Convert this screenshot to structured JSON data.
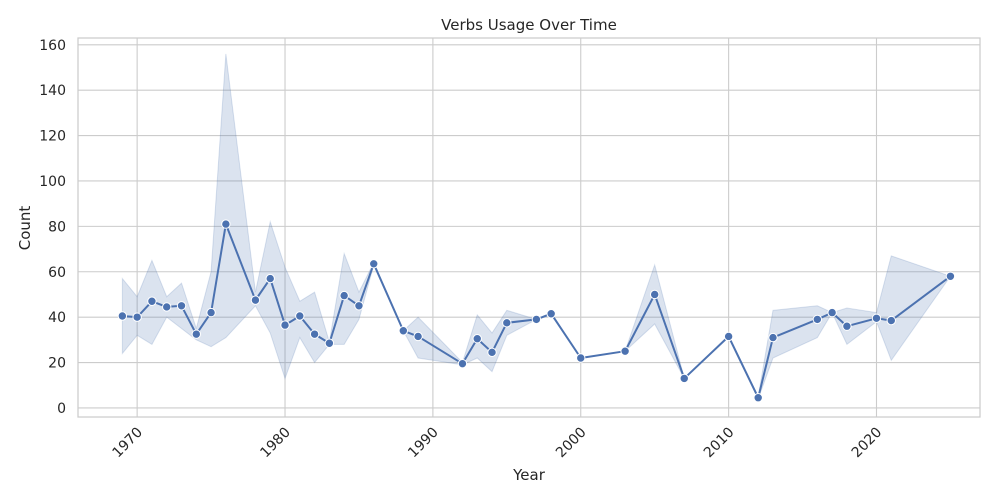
{
  "chart_data": {
    "type": "line",
    "title": "Verbs Usage Over Time",
    "xlabel": "Year",
    "ylabel": "Count",
    "xlim": [
      1966,
      2027
    ],
    "ylim": [
      -4,
      163
    ],
    "x_ticks": [
      1970,
      1980,
      1990,
      2000,
      2010,
      2020
    ],
    "y_ticks": [
      0,
      20,
      40,
      60,
      80,
      100,
      120,
      140,
      160
    ],
    "grid": true,
    "colors": {
      "line": "#4c72b0",
      "band": "#4c72b0",
      "grid": "#cccccc",
      "frame": "#cccccc"
    },
    "series": [
      {
        "points": [
          {
            "x": 1969,
            "y": 40.5
          },
          {
            "x": 1970,
            "y": 40
          },
          {
            "x": 1971,
            "y": 47
          },
          {
            "x": 1972,
            "y": 44.5
          },
          {
            "x": 1973,
            "y": 45
          },
          {
            "x": 1974,
            "y": 32.5
          },
          {
            "x": 1975,
            "y": 42
          },
          {
            "x": 1976,
            "y": 81
          },
          {
            "x": 1978,
            "y": 47.5
          },
          {
            "x": 1979,
            "y": 57
          },
          {
            "x": 1980,
            "y": 36.5
          },
          {
            "x": 1981,
            "y": 40.5
          },
          {
            "x": 1982,
            "y": 32.5
          },
          {
            "x": 1983,
            "y": 28.5
          },
          {
            "x": 1984,
            "y": 49.5
          },
          {
            "x": 1985,
            "y": 45
          },
          {
            "x": 1986,
            "y": 63.5
          },
          {
            "x": 1988,
            "y": 34
          },
          {
            "x": 1989,
            "y": 31.5
          },
          {
            "x": 1992,
            "y": 19.5
          },
          {
            "x": 1993,
            "y": 30.5
          },
          {
            "x": 1994,
            "y": 24.5
          },
          {
            "x": 1995,
            "y": 37.5
          },
          {
            "x": 1997,
            "y": 39
          },
          {
            "x": 1998,
            "y": 41.5
          },
          {
            "x": 2000,
            "y": 22
          },
          {
            "x": 2003,
            "y": 25
          },
          {
            "x": 2005,
            "y": 50
          },
          {
            "x": 2007,
            "y": 13
          },
          {
            "x": 2010,
            "y": 31.5
          },
          {
            "x": 2012,
            "y": 4.5
          },
          {
            "x": 2013,
            "y": 31
          },
          {
            "x": 2016,
            "y": 39
          },
          {
            "x": 2017,
            "y": 42
          },
          {
            "x": 2018,
            "y": 36
          },
          {
            "x": 2020,
            "y": 39.5
          },
          {
            "x": 2021,
            "y": 38.5
          },
          {
            "x": 2025,
            "y": 58
          }
        ],
        "ci_band": [
          {
            "x": 1969,
            "lo": 24,
            "hi": 57
          },
          {
            "x": 1970,
            "lo": 32,
            "hi": 49
          },
          {
            "x": 1971,
            "lo": 28,
            "hi": 65
          },
          {
            "x": 1972,
            "lo": 40,
            "hi": 49
          },
          {
            "x": 1973,
            "lo": 35,
            "hi": 55
          },
          {
            "x": 1974,
            "lo": 30,
            "hi": 35
          },
          {
            "x": 1975,
            "lo": 27,
            "hi": 60
          },
          {
            "x": 1976,
            "lo": 31,
            "hi": 156
          },
          {
            "x": 1978,
            "lo": 45,
            "hi": 51
          },
          {
            "x": 1979,
            "lo": 33,
            "hi": 82
          },
          {
            "x": 1980,
            "lo": 13,
            "hi": 62
          },
          {
            "x": 1981,
            "lo": 31,
            "hi": 47
          },
          {
            "x": 1982,
            "lo": 20,
            "hi": 51
          },
          {
            "x": 1983,
            "lo": 28,
            "hi": 29
          },
          {
            "x": 1984,
            "lo": 28,
            "hi": 68
          },
          {
            "x": 1985,
            "lo": 39,
            "hi": 51
          },
          {
            "x": 1986,
            "lo": 63,
            "hi": 64
          },
          {
            "x": 1988,
            "lo": 34,
            "hi": 34
          },
          {
            "x": 1989,
            "lo": 22,
            "hi": 40
          },
          {
            "x": 1992,
            "lo": 19,
            "hi": 20
          },
          {
            "x": 1993,
            "lo": 22,
            "hi": 41
          },
          {
            "x": 1994,
            "lo": 16,
            "hi": 33
          },
          {
            "x": 1995,
            "lo": 32,
            "hi": 43
          },
          {
            "x": 1997,
            "lo": 39,
            "hi": 39
          },
          {
            "x": 1998,
            "lo": 41,
            "hi": 42
          },
          {
            "x": 2000,
            "lo": 22,
            "hi": 22
          },
          {
            "x": 2003,
            "lo": 25,
            "hi": 25
          },
          {
            "x": 2005,
            "lo": 37,
            "hi": 63
          },
          {
            "x": 2007,
            "lo": 13,
            "hi": 13
          },
          {
            "x": 2010,
            "lo": 31,
            "hi": 32
          },
          {
            "x": 2012,
            "lo": 4,
            "hi": 5
          },
          {
            "x": 2013,
            "lo": 22,
            "hi": 43
          },
          {
            "x": 2016,
            "lo": 31,
            "hi": 45
          },
          {
            "x": 2017,
            "lo": 42,
            "hi": 42
          },
          {
            "x": 2018,
            "lo": 28,
            "hi": 44
          },
          {
            "x": 2020,
            "lo": 38,
            "hi": 42
          },
          {
            "x": 2021,
            "lo": 21,
            "hi": 67
          },
          {
            "x": 2025,
            "lo": 58,
            "hi": 58
          }
        ]
      }
    ]
  }
}
